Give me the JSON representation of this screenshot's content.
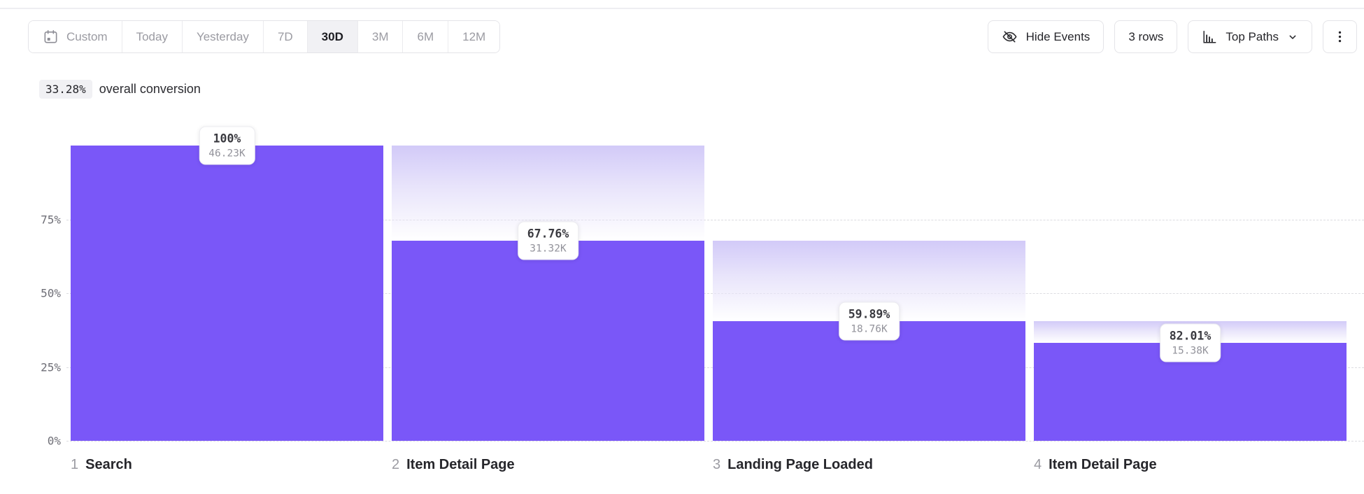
{
  "toolbar": {
    "date_picker": {
      "items": [
        {
          "label": "Custom",
          "icon": "calendar",
          "selected": false
        },
        {
          "label": "Today",
          "selected": false
        },
        {
          "label": "Yesterday",
          "selected": false
        },
        {
          "label": "7D",
          "selected": false
        },
        {
          "label": "30D",
          "selected": true
        },
        {
          "label": "3M",
          "selected": false
        },
        {
          "label": "6M",
          "selected": false
        },
        {
          "label": "12M",
          "selected": false
        }
      ]
    },
    "hide_events": {
      "label": "Hide Events",
      "icon": "eye-off"
    },
    "rows": {
      "label": "3 rows"
    },
    "top_paths": {
      "label": "Top Paths",
      "icon": "bar-chart",
      "chevron": "down"
    },
    "more": {
      "icon": "kebab-vertical"
    }
  },
  "summary": {
    "value": "33.28%",
    "text": "overall conversion"
  },
  "chart_data": {
    "type": "bar",
    "subtype": "funnel",
    "title": "",
    "overall_conversion_label": "33.28%",
    "y_axis": {
      "ticks": [
        "75%",
        "50%",
        "25%",
        "0%"
      ],
      "tick_pcts": [
        75,
        50,
        25,
        0
      ],
      "max_pct": 100,
      "gridlines": "dashed"
    },
    "steps": [
      {
        "step": "1",
        "label": "Search",
        "conversion_pct_label": "100%",
        "count_label": "46.23K",
        "count": 46230,
        "pct_of_total": 100
      },
      {
        "step": "2",
        "label": "Item Detail Page",
        "conversion_pct_label": "67.76%",
        "count_label": "31.32K",
        "count": 31320,
        "pct_of_total": 67.75
      },
      {
        "step": "3",
        "label": "Landing Page Loaded",
        "conversion_pct_label": "59.89%",
        "count_label": "18.76K",
        "count": 18760,
        "pct_of_total": 40.58
      },
      {
        "step": "4",
        "label": "Item Detail Page",
        "conversion_pct_label": "82.01%",
        "count_label": "15.38K",
        "count": 15380,
        "pct_of_total": 33.27
      }
    ],
    "colors": {
      "bar": "#7a57f8",
      "gradient_top": "#d2caf8",
      "gridline": "#dcdce1",
      "tick_text": "#6e6e76"
    }
  }
}
